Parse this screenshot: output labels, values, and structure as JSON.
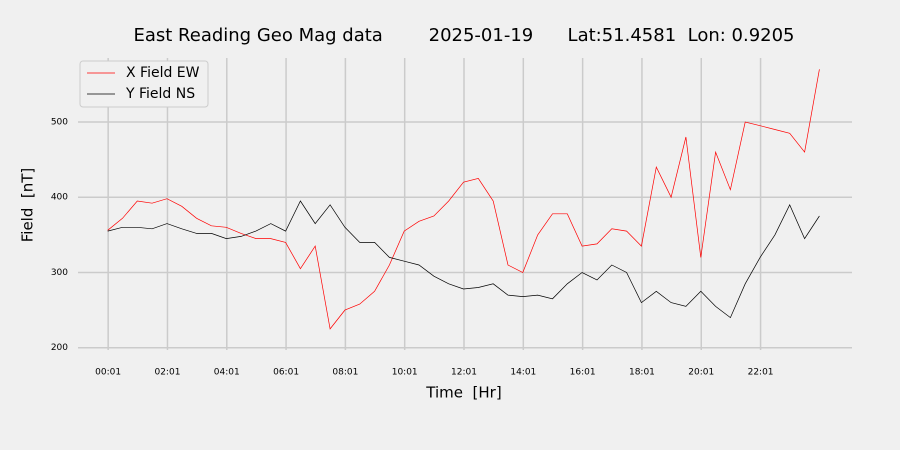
{
  "chart_data": {
    "type": "line",
    "title": "East Reading Geo Mag data        2025-01-19      Lat:51.4581  Lon: 0.9205",
    "x_label": "Time  [Hr]",
    "y_label": "Field  [nT]",
    "x": [
      0,
      0.5,
      1,
      1.5,
      2,
      2.5,
      3,
      3.5,
      4,
      4.5,
      5,
      5.5,
      6,
      6.5,
      7,
      7.5,
      8,
      8.5,
      9,
      9.5,
      10,
      10.5,
      11,
      11.5,
      12,
      12.5,
      13,
      13.5,
      14,
      14.5,
      15,
      15.5,
      16,
      16.5,
      17,
      17.5,
      18,
      18.5,
      19,
      19.5,
      20,
      20.5,
      21,
      21.5,
      22,
      22.5,
      23,
      23.5,
      24
    ],
    "series": [
      {
        "name": "X Field EW",
        "color": "#ff0000",
        "values": [
          356,
          372,
          395,
          392,
          398,
          388,
          372,
          362,
          360,
          352,
          345,
          345,
          340,
          305,
          335,
          225,
          250,
          258,
          275,
          310,
          355,
          368,
          375,
          395,
          420,
          425,
          395,
          310,
          300,
          350,
          378,
          378,
          335,
          338,
          358,
          355,
          335,
          440,
          400,
          480,
          320,
          460,
          410,
          500,
          495,
          490,
          485,
          460,
          570
        ]
      },
      {
        "name": "Y Field NS",
        "color": "#000000",
        "values": [
          355,
          360,
          360,
          358,
          365,
          358,
          352,
          352,
          345,
          348,
          355,
          365,
          355,
          395,
          365,
          390,
          360,
          340,
          340,
          320,
          315,
          310,
          295,
          285,
          278,
          280,
          285,
          270,
          268,
          270,
          265,
          285,
          300,
          290,
          310,
          300,
          260,
          275,
          260,
          255,
          275,
          255,
          240,
          285,
          320,
          350,
          390,
          345,
          375
        ]
      }
    ],
    "xlim": [
      -1,
      25.1
    ],
    "ylim": [
      197,
      585
    ],
    "xticks": [
      {
        "value": 0.01667,
        "label": "00:01"
      },
      {
        "value": 2.01667,
        "label": "02:01"
      },
      {
        "value": 4.01667,
        "label": "04:01"
      },
      {
        "value": 6.01667,
        "label": "06:01"
      },
      {
        "value": 8.01667,
        "label": "08:01"
      },
      {
        "value": 10.01667,
        "label": "10:01"
      },
      {
        "value": 12.01667,
        "label": "12:01"
      },
      {
        "value": 14.01667,
        "label": "14:01"
      },
      {
        "value": 16.01667,
        "label": "16:01"
      },
      {
        "value": 18.01667,
        "label": "18:01"
      },
      {
        "value": 20.01667,
        "label": "20:01"
      },
      {
        "value": 22.01667,
        "label": "22:01"
      }
    ],
    "yticks": [
      200,
      300,
      400,
      500
    ],
    "grid": true,
    "legend": "upper left"
  }
}
